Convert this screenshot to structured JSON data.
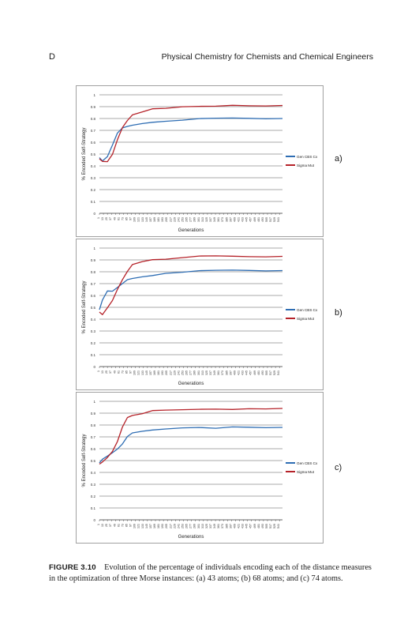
{
  "header": {
    "left": "D",
    "title": "Physical Chemistry for Chemists and Chemical Engineers"
  },
  "chart_data": [
    {
      "type": "line",
      "panel": "a)",
      "xlabel": "Generations",
      "ylabel": "% Encoded Self-Strategy",
      "ylim": [
        0,
        1
      ],
      "yticks": [
        "0",
        "0.1",
        "0.2",
        "0.3",
        "0.4",
        "0.5",
        "0.6",
        "0.7",
        "0.8",
        "0.9",
        "1"
      ],
      "xlim": [
        1,
        550
      ],
      "legend_position": "right",
      "grid": true,
      "series": [
        {
          "name": "Gen CBS Cx",
          "color": "#2e6db3",
          "x": [
            1,
            10,
            25,
            40,
            55,
            70,
            85,
            100,
            130,
            160,
            200,
            250,
            300,
            350,
            400,
            450,
            500,
            550
          ],
          "values": [
            0.47,
            0.44,
            0.48,
            0.58,
            0.68,
            0.72,
            0.73,
            0.74,
            0.76,
            0.77,
            0.78,
            0.79,
            0.8,
            0.8,
            0.8,
            0.8,
            0.8,
            0.8
          ]
        },
        {
          "name": "Sigma Mut",
          "color": "#b52229",
          "x": [
            1,
            10,
            25,
            40,
            55,
            70,
            85,
            100,
            130,
            160,
            200,
            250,
            300,
            350,
            400,
            450,
            500,
            550
          ],
          "values": [
            0.46,
            0.44,
            0.44,
            0.5,
            0.62,
            0.72,
            0.78,
            0.83,
            0.86,
            0.88,
            0.89,
            0.9,
            0.9,
            0.9,
            0.91,
            0.91,
            0.91,
            0.91
          ]
        }
      ]
    },
    {
      "type": "line",
      "panel": "b)",
      "xlabel": "Generations",
      "ylabel": "% Encoded Self-Strategy",
      "ylim": [
        0,
        1
      ],
      "yticks": [
        "0",
        "0.1",
        "0.2",
        "0.3",
        "0.4",
        "0.5",
        "0.6",
        "0.7",
        "0.8",
        "0.9",
        "1"
      ],
      "xlim": [
        1,
        550
      ],
      "legend_position": "right",
      "grid": true,
      "series": [
        {
          "name": "Gen CBS Cx",
          "color": "#2e6db3",
          "x": [
            1,
            10,
            25,
            40,
            55,
            70,
            85,
            100,
            130,
            160,
            200,
            250,
            300,
            350,
            400,
            450,
            500,
            550
          ],
          "values": [
            0.48,
            0.56,
            0.64,
            0.64,
            0.67,
            0.7,
            0.73,
            0.74,
            0.76,
            0.77,
            0.79,
            0.8,
            0.81,
            0.81,
            0.81,
            0.81,
            0.81,
            0.81
          ]
        },
        {
          "name": "Sigma Mut",
          "color": "#b52229",
          "x": [
            1,
            10,
            25,
            40,
            55,
            70,
            85,
            100,
            130,
            160,
            200,
            250,
            300,
            350,
            400,
            450,
            500,
            550
          ],
          "values": [
            0.46,
            0.44,
            0.5,
            0.56,
            0.65,
            0.73,
            0.8,
            0.86,
            0.89,
            0.9,
            0.91,
            0.92,
            0.93,
            0.93,
            0.93,
            0.93,
            0.93,
            0.93
          ]
        }
      ]
    },
    {
      "type": "line",
      "panel": "c)",
      "xlabel": "Generations",
      "ylabel": "% Encoded Self-Strategy",
      "ylim": [
        0,
        1
      ],
      "yticks": [
        "0",
        "0.1",
        "0.2",
        "0.3",
        "0.4",
        "0.5",
        "0.6",
        "0.7",
        "0.8",
        "0.9",
        "1"
      ],
      "xlim": [
        1,
        550
      ],
      "legend_position": "right",
      "grid": true,
      "series": [
        {
          "name": "Gen CBS Cx",
          "color": "#2e6db3",
          "x": [
            1,
            10,
            25,
            40,
            55,
            70,
            85,
            100,
            130,
            160,
            200,
            250,
            300,
            350,
            400,
            450,
            500,
            550
          ],
          "values": [
            0.48,
            0.51,
            0.54,
            0.57,
            0.6,
            0.64,
            0.7,
            0.73,
            0.75,
            0.76,
            0.77,
            0.78,
            0.78,
            0.77,
            0.78,
            0.78,
            0.78,
            0.78
          ]
        },
        {
          "name": "Sigma Mut",
          "color": "#b52229",
          "x": [
            1,
            10,
            25,
            40,
            55,
            70,
            85,
            100,
            130,
            160,
            200,
            250,
            300,
            350,
            400,
            450,
            500,
            550
          ],
          "values": [
            0.47,
            0.49,
            0.53,
            0.58,
            0.66,
            0.78,
            0.86,
            0.88,
            0.9,
            0.92,
            0.93,
            0.93,
            0.93,
            0.93,
            0.93,
            0.94,
            0.94,
            0.94
          ]
        }
      ]
    }
  ],
  "caption": {
    "label": "FIGURE 3.10",
    "text": "Evolution of the percentage of individuals encoding each of the distance measures in the optimization of three Morse instances: (a) 43 atoms; (b) 68 atoms; and (c) 74 atoms."
  }
}
